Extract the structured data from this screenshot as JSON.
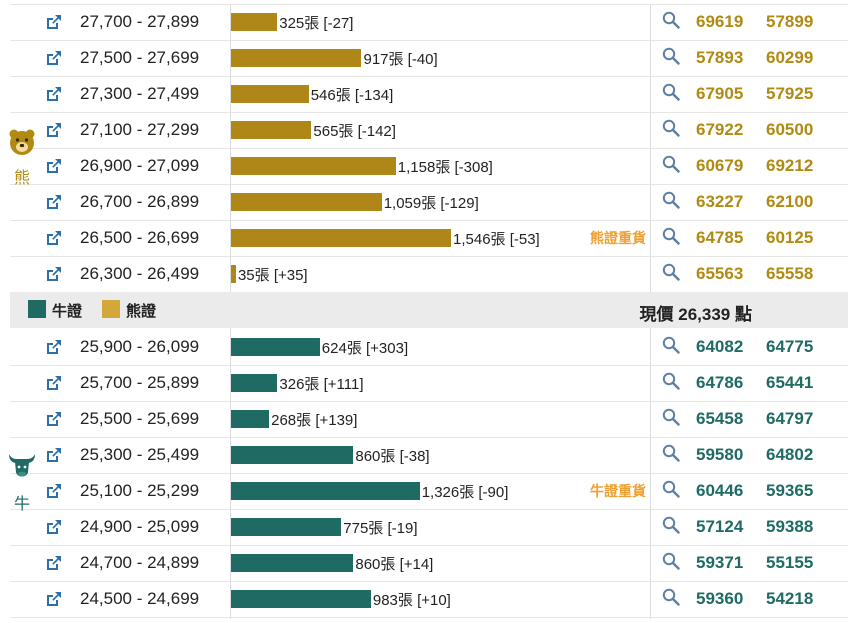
{
  "colors": {
    "bear": "#af8718",
    "bull": "#1f6b63",
    "bear_legend": "#d4a73a",
    "heavy": "#f0a030"
  },
  "chart_data": {
    "type": "bar",
    "orientation": "horizontal",
    "groups": [
      {
        "name": "熊",
        "rows": [
          {
            "range": "27,700 - 27,899",
            "value": 325,
            "label": "325張 [-27]",
            "codes": [
              "69619",
              "57899"
            ],
            "tag": ""
          },
          {
            "range": "27,500 - 27,699",
            "value": 917,
            "label": "917張 [-40]",
            "codes": [
              "57893",
              "60299"
            ],
            "tag": ""
          },
          {
            "range": "27,300 - 27,499",
            "value": 546,
            "label": "546張 [-134]",
            "codes": [
              "67905",
              "57925"
            ],
            "tag": ""
          },
          {
            "range": "27,100 - 27,299",
            "value": 565,
            "label": "565張 [-142]",
            "codes": [
              "67922",
              "60500"
            ],
            "tag": ""
          },
          {
            "range": "26,900 - 27,099",
            "value": 1158,
            "label": "1,158張 [-308]",
            "codes": [
              "60679",
              "69212"
            ],
            "tag": ""
          },
          {
            "range": "26,700 - 26,899",
            "value": 1059,
            "label": "1,059張 [-129]",
            "codes": [
              "63227",
              "62100"
            ],
            "tag": ""
          },
          {
            "range": "26,500 - 26,699",
            "value": 1546,
            "label": "1,546張 [-53]",
            "codes": [
              "64785",
              "60125"
            ],
            "tag": "熊證重貨"
          },
          {
            "range": "26,300 - 26,499",
            "value": 35,
            "label": "35張 [+35]",
            "codes": [
              "65563",
              "65558"
            ],
            "tag": ""
          }
        ]
      },
      {
        "name": "牛",
        "rows": [
          {
            "range": "25,900 - 26,099",
            "value": 624,
            "label": "624張 [+303]",
            "codes": [
              "64082",
              "64775"
            ],
            "tag": ""
          },
          {
            "range": "25,700 - 25,899",
            "value": 326,
            "label": "326張 [+111]",
            "codes": [
              "64786",
              "65441"
            ],
            "tag": ""
          },
          {
            "range": "25,500 - 25,699",
            "value": 268,
            "label": "268張 [+139]",
            "codes": [
              "65458",
              "64797"
            ],
            "tag": ""
          },
          {
            "range": "25,300 - 25,499",
            "value": 860,
            "label": "860張 [-38]",
            "codes": [
              "59580",
              "64802"
            ],
            "tag": ""
          },
          {
            "range": "25,100 - 25,299",
            "value": 1326,
            "label": "1,326張 [-90]",
            "codes": [
              "60446",
              "59365"
            ],
            "tag": "牛證重貨"
          },
          {
            "range": "24,900 - 25,099",
            "value": 775,
            "label": "775張 [-19]",
            "codes": [
              "57124",
              "59388"
            ],
            "tag": ""
          },
          {
            "range": "24,700 - 24,899",
            "value": 860,
            "label": "860張 [+14]",
            "codes": [
              "59371",
              "55155"
            ],
            "tag": ""
          },
          {
            "range": "24,500 - 24,699",
            "value": 983,
            "label": "983張 [+10]",
            "codes": [
              "59360",
              "54218"
            ],
            "tag": ""
          }
        ]
      }
    ],
    "legend": [
      {
        "label": "牛證"
      },
      {
        "label": "熊證"
      }
    ],
    "current_price": "現價 26,339 點",
    "xlim": [
      0,
      1546
    ]
  }
}
